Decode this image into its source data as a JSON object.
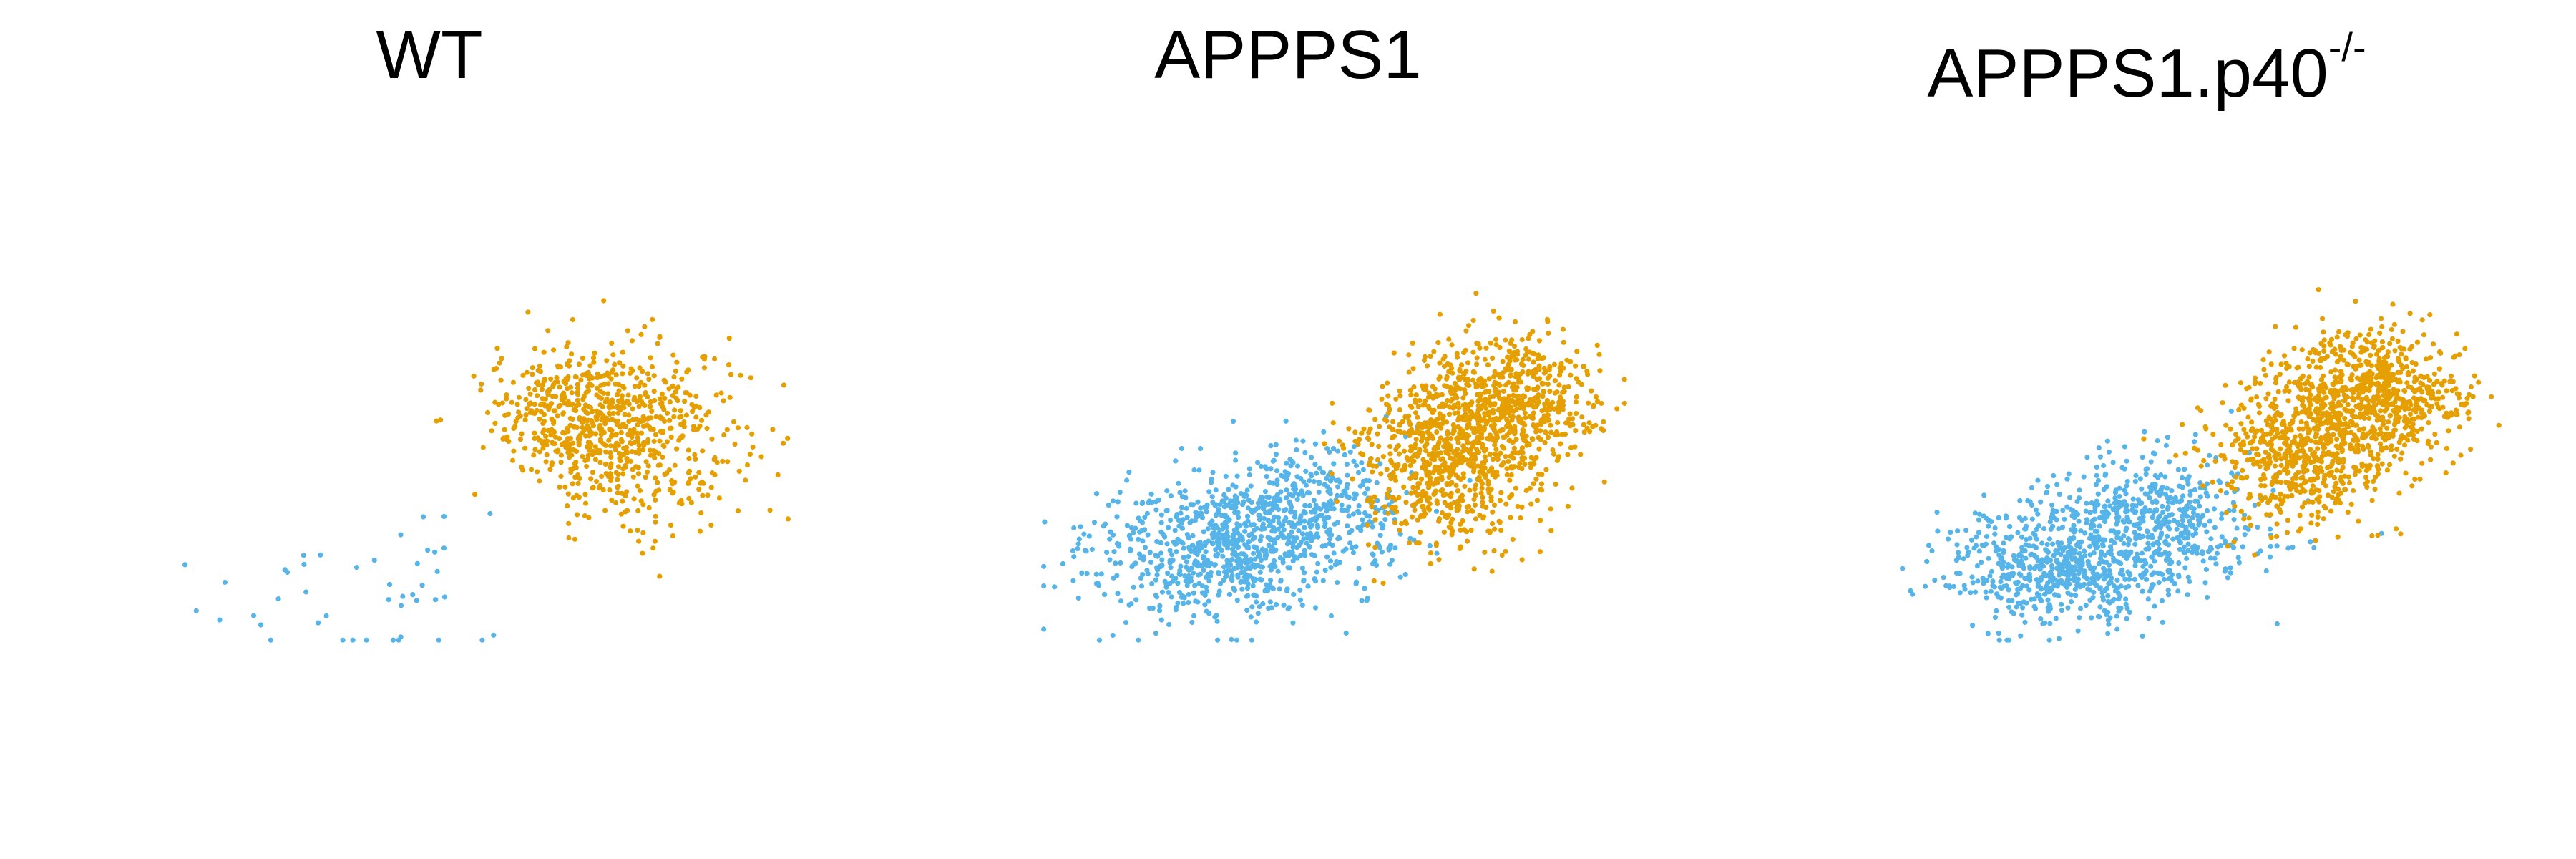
{
  "colors": {
    "cluster_a": "#56b4e9",
    "cluster_b": "#e69f00",
    "background": "#ffffff"
  },
  "chart_data": [
    {
      "type": "scatter",
      "title": "WT",
      "title_sup": "",
      "xlabel": "",
      "ylabel": "",
      "axes": "hidden",
      "grid": false,
      "legend": "none",
      "series": [
        {
          "color": "#56b4e9",
          "point_count": 45,
          "clouds": [
            {
              "cx": 0.22,
              "cy": 0.12,
              "sx": 0.09,
              "sy": 0.12,
              "n": 28
            },
            {
              "cx": 0.42,
              "cy": 0.18,
              "sx": 0.05,
              "sy": 0.1,
              "n": 17
            }
          ]
        },
        {
          "color": "#e69f00",
          "point_count": 800,
          "clouds": [
            {
              "cx": 0.74,
              "cy": 0.5,
              "sx": 0.09,
              "sy": 0.11,
              "n": 500
            },
            {
              "cx": 0.64,
              "cy": 0.56,
              "sx": 0.07,
              "sy": 0.07,
              "n": 300
            }
          ]
        }
      ]
    },
    {
      "type": "scatter",
      "title": "APPPS1",
      "title_sup": "",
      "xlabel": "",
      "ylabel": "",
      "axes": "hidden",
      "grid": false,
      "legend": "none",
      "series": [
        {
          "color": "#56b4e9",
          "point_count": 1100,
          "clouds": [
            {
              "cx": 0.28,
              "cy": 0.22,
              "sx": 0.1,
              "sy": 0.08,
              "n": 650
            },
            {
              "cx": 0.44,
              "cy": 0.32,
              "sx": 0.09,
              "sy": 0.08,
              "n": 450
            }
          ]
        },
        {
          "color": "#e69f00",
          "point_count": 1300,
          "clouds": [
            {
              "cx": 0.76,
              "cy": 0.58,
              "sx": 0.07,
              "sy": 0.08,
              "n": 650
            },
            {
              "cx": 0.66,
              "cy": 0.44,
              "sx": 0.07,
              "sy": 0.1,
              "n": 650
            }
          ]
        }
      ]
    },
    {
      "type": "scatter",
      "title": "APPPS1.p40",
      "title_sup": "-/-",
      "xlabel": "",
      "ylabel": "",
      "axes": "hidden",
      "grid": false,
      "legend": "none",
      "series": [
        {
          "color": "#56b4e9",
          "point_count": 1100,
          "clouds": [
            {
              "cx": 0.26,
              "cy": 0.18,
              "sx": 0.09,
              "sy": 0.07,
              "n": 600
            },
            {
              "cx": 0.42,
              "cy": 0.3,
              "sx": 0.09,
              "sy": 0.08,
              "n": 500
            }
          ]
        },
        {
          "color": "#e69f00",
          "point_count": 1300,
          "clouds": [
            {
              "cx": 0.78,
              "cy": 0.6,
              "sx": 0.07,
              "sy": 0.08,
              "n": 700
            },
            {
              "cx": 0.66,
              "cy": 0.46,
              "sx": 0.07,
              "sy": 0.09,
              "n": 600
            }
          ]
        }
      ]
    }
  ]
}
